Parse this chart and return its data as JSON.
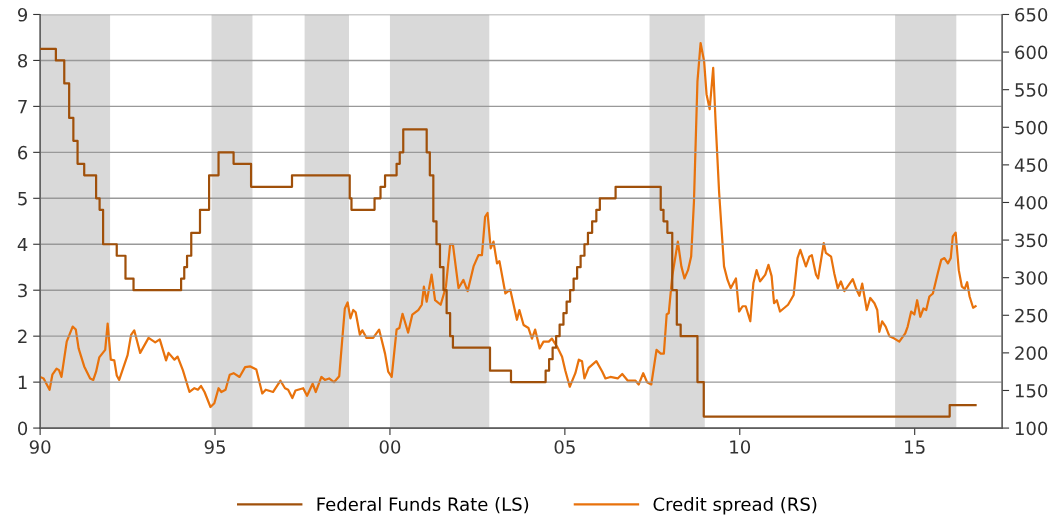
{
  "chart_data": {
    "type": "line",
    "xlim": [
      1990,
      2017.5
    ],
    "xticks": [
      {
        "value": 1990,
        "label": "90"
      },
      {
        "value": 1995,
        "label": "95"
      },
      {
        "value": 2000,
        "label": "00"
      },
      {
        "value": 2005,
        "label": "05"
      },
      {
        "value": 2010,
        "label": "10"
      },
      {
        "value": 2015,
        "label": "15"
      }
    ],
    "ylim": [
      0,
      9
    ],
    "yticks": [
      0,
      1,
      2,
      3,
      4,
      5,
      6,
      7,
      8,
      9
    ],
    "y2lim": [
      100,
      650
    ],
    "y2ticks": [
      100,
      150,
      200,
      250,
      300,
      350,
      400,
      450,
      500,
      550,
      600,
      650
    ],
    "grid": "y",
    "legend": "bottom",
    "bands": [
      {
        "axis": "x",
        "from": 1990.0,
        "to": 1992.0,
        "color": "#d9d9d9"
      },
      {
        "axis": "x",
        "from": 1994.9,
        "to": 1996.07,
        "color": "#d9d9d9"
      },
      {
        "axis": "x",
        "from": 1997.56,
        "to": 1998.83,
        "color": "#d9d9d9"
      },
      {
        "axis": "x",
        "from": 2000.0,
        "to": 2002.84,
        "color": "#d9d9d9"
      },
      {
        "axis": "x",
        "from": 2007.42,
        "to": 2009.0,
        "color": "#d9d9d9"
      },
      {
        "axis": "x",
        "from": 2014.44,
        "to": 2016.19,
        "color": "#d9d9d9"
      }
    ],
    "series": [
      {
        "name": "Federal Funds Rate (LS)",
        "type": "step",
        "color": "#a0500a",
        "x": [
          1990.0,
          1990.45,
          1990.69,
          1990.83,
          1990.95,
          1991.07,
          1991.26,
          1991.6,
          1991.7,
          1991.8,
          1991.93,
          1992.19,
          1992.44,
          1992.6,
          1992.67,
          1994.03,
          1994.12,
          1994.2,
          1994.32,
          1994.57,
          1994.83,
          1995.1,
          1995.53,
          1996.03,
          1997.2,
          1998.85,
          1998.9,
          1999.56,
          1999.73,
          1999.86,
          2000.19,
          2000.28,
          2000.38,
          2000.95,
          2001.05,
          2001.14,
          2001.24,
          2001.33,
          2001.43,
          2001.53,
          2001.62,
          2001.72,
          2001.8,
          2002.86,
          2003.46,
          2004.45,
          2004.55,
          2004.65,
          2004.75,
          2004.85,
          2004.96,
          2005.05,
          2005.15,
          2005.25,
          2005.35,
          2005.45,
          2005.56,
          2005.66,
          2005.78,
          2005.9,
          2006.0,
          2006.45,
          2007.74,
          2007.82,
          2007.93,
          2008.07,
          2008.2,
          2008.31,
          2008.79,
          2008.97,
          2016.0,
          2016.74
        ],
        "values": [
          8.25,
          8.0,
          7.5,
          6.75,
          6.25,
          5.75,
          5.5,
          5.0,
          4.75,
          4.0,
          4.0,
          3.75,
          3.25,
          3.25,
          3.0,
          3.25,
          3.5,
          3.75,
          4.25,
          4.75,
          5.5,
          6.0,
          5.75,
          5.25,
          5.5,
          5.0,
          4.75,
          5.0,
          5.25,
          5.5,
          5.75,
          6.0,
          6.5,
          6.5,
          6.0,
          5.5,
          4.5,
          4.0,
          3.5,
          3.0,
          2.5,
          2.0,
          1.75,
          1.25,
          1.0,
          1.25,
          1.5,
          1.75,
          2.0,
          2.25,
          2.5,
          2.75,
          3.0,
          3.25,
          3.5,
          3.75,
          4.0,
          4.25,
          4.5,
          4.75,
          5.0,
          5.25,
          4.75,
          4.5,
          4.25,
          3.0,
          2.25,
          2.0,
          1.0,
          0.25,
          0.5,
          0.5
        ]
      },
      {
        "name": "Credit spread (RS)",
        "color": "#e8720c",
        "axis": "y2",
        "x": [
          1990.0,
          1990.1,
          1990.27,
          1990.35,
          1990.47,
          1990.54,
          1990.61,
          1990.76,
          1990.93,
          1991.02,
          1991.1,
          1991.26,
          1991.43,
          1991.52,
          1991.6,
          1991.69,
          1991.86,
          1991.93,
          1992.02,
          1992.12,
          1992.19,
          1992.26,
          1992.5,
          1992.6,
          1992.69,
          1992.86,
          1993.1,
          1993.29,
          1993.42,
          1993.6,
          1993.67,
          1993.84,
          1993.93,
          1994.08,
          1994.27,
          1994.41,
          1994.51,
          1994.6,
          1994.7,
          1994.87,
          1994.98,
          1995.1,
          1995.18,
          1995.3,
          1995.42,
          1995.53,
          1995.7,
          1995.86,
          1996.01,
          1996.18,
          1996.35,
          1996.45,
          1996.66,
          1996.87,
          1997.0,
          1997.09,
          1997.21,
          1997.3,
          1997.52,
          1997.63,
          1997.79,
          1997.88,
          1998.04,
          1998.14,
          1998.26,
          1998.4,
          1998.55,
          1998.71,
          1998.79,
          1998.87,
          1998.95,
          1999.02,
          1999.14,
          1999.21,
          1999.33,
          1999.52,
          1999.69,
          1999.86,
          1999.95,
          2000.05,
          2000.19,
          2000.27,
          2000.36,
          2000.52,
          2000.64,
          2000.81,
          2000.91,
          2000.97,
          2001.05,
          2001.19,
          2001.29,
          2001.45,
          2001.6,
          2001.72,
          2001.8,
          2001.96,
          2002.1,
          2002.22,
          2002.39,
          2002.53,
          2002.63,
          2002.72,
          2002.79,
          2002.88,
          2002.96,
          2003.06,
          2003.13,
          2003.3,
          2003.44,
          2003.63,
          2003.7,
          2003.82,
          2003.96,
          2004.06,
          2004.15,
          2004.28,
          2004.39,
          2004.54,
          2004.63,
          2004.78,
          2004.92,
          2005.01,
          2005.14,
          2005.3,
          2005.4,
          2005.49,
          2005.56,
          2005.68,
          2005.9,
          2006.07,
          2006.16,
          2006.3,
          2006.51,
          2006.64,
          2006.8,
          2007.02,
          2007.11,
          2007.24,
          2007.35,
          2007.47,
          2007.62,
          2007.74,
          2007.83,
          2007.91,
          2007.97,
          2008.07,
          2008.23,
          2008.33,
          2008.42,
          2008.52,
          2008.61,
          2008.69,
          2008.79,
          2008.88,
          2008.98,
          2009.05,
          2009.14,
          2009.24,
          2009.31,
          2009.41,
          2009.48,
          2009.55,
          2009.65,
          2009.74,
          2009.89,
          2009.98,
          2010.08,
          2010.17,
          2010.3,
          2010.39,
          2010.48,
          2010.58,
          2010.73,
          2010.82,
          2010.91,
          2010.98,
          2011.06,
          2011.15,
          2011.38,
          2011.54,
          2011.65,
          2011.73,
          2011.89,
          2011.99,
          2012.06,
          2012.18,
          2012.24,
          2012.4,
          2012.46,
          2012.61,
          2012.7,
          2012.8,
          2012.89,
          2012.99,
          2013.23,
          2013.32,
          2013.42,
          2013.5,
          2013.63,
          2013.73,
          2013.85,
          2013.93,
          2013.99,
          2014.07,
          2014.17,
          2014.28,
          2014.42,
          2014.56,
          2014.73,
          2014.8,
          2014.9,
          2014.99,
          2015.07,
          2015.16,
          2015.25,
          2015.33,
          2015.42,
          2015.52,
          2015.66,
          2015.76,
          2015.85,
          2015.95,
          2016.03,
          2016.09,
          2016.17,
          2016.26,
          2016.35,
          2016.43,
          2016.5,
          2016.57,
          2016.67,
          2016.74
        ],
        "values": [
          168,
          166,
          151,
          171,
          179,
          177,
          168,
          215,
          235,
          231,
          206,
          182,
          166,
          164,
          175,
          194,
          204,
          239,
          191,
          190,
          170,
          164,
          197,
          224,
          230,
          200,
          220,
          214,
          218,
          190,
          200,
          191,
          195,
          177,
          148,
          153,
          151,
          156,
          148,
          128,
          133,
          153,
          148,
          151,
          171,
          173,
          168,
          181,
          182,
          178,
          146,
          151,
          148,
          163,
          153,
          151,
          140,
          150,
          153,
          143,
          159,
          148,
          168,
          164,
          166,
          161,
          169,
          259,
          267,
          246,
          257,
          254,
          224,
          230,
          220,
          220,
          231,
          199,
          175,
          168,
          231,
          233,
          252,
          227,
          251,
          257,
          264,
          288,
          268,
          304,
          270,
          264,
          288,
          344,
          344,
          286,
          297,
          282,
          315,
          330,
          330,
          381,
          386,
          339,
          348,
          319,
          322,
          279,
          284,
          244,
          257,
          237,
          233,
          219,
          231,
          206,
          215,
          215,
          219,
          208,
          195,
          177,
          155,
          173,
          191,
          189,
          166,
          180,
          189,
          175,
          166,
          168,
          166,
          172,
          163,
          163,
          158,
          173,
          161,
          158,
          204,
          199,
          199,
          251,
          253,
          302,
          348,
          315,
          299,
          310,
          328,
          401,
          561,
          612,
          588,
          544,
          524,
          579,
          506,
          413,
          364,
          315,
          297,
          286,
          299,
          255,
          262,
          262,
          242,
          293,
          310,
          295,
          304,
          317,
          302,
          266,
          270,
          255,
          264,
          277,
          326,
          337,
          315,
          328,
          330,
          304,
          299,
          346,
          333,
          328,
          306,
          286,
          295,
          282,
          298,
          286,
          276,
          292,
          257,
          273,
          266,
          257,
          228,
          242,
          235,
          222,
          219,
          215,
          226,
          235,
          255,
          251,
          270,
          248,
          259,
          257,
          275,
          279,
          306,
          324,
          326,
          319,
          326,
          355,
          360,
          310,
          288,
          285,
          294,
          275,
          260,
          262
        ]
      }
    ]
  }
}
